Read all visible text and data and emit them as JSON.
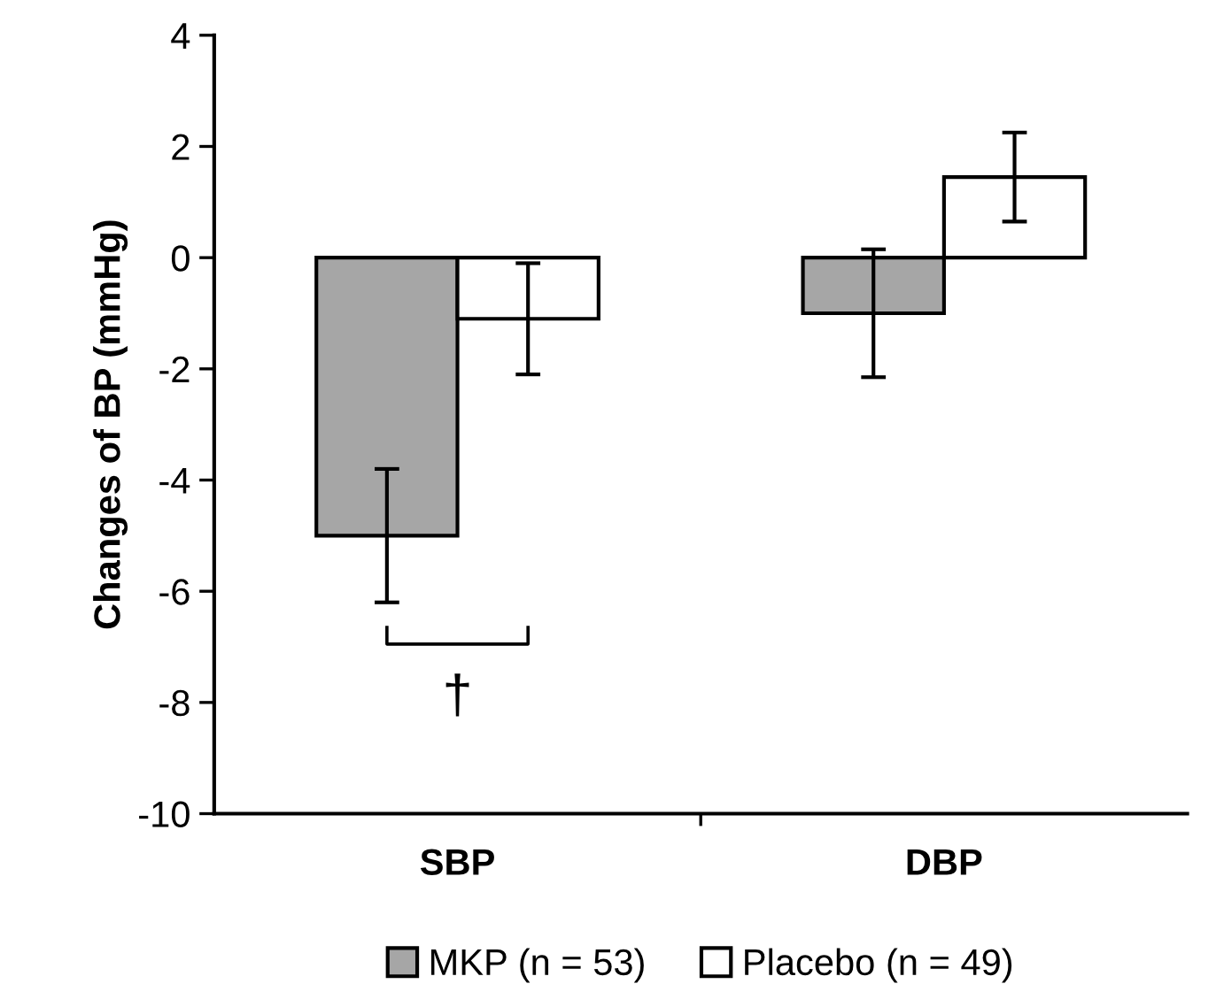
{
  "chart_data": {
    "type": "bar",
    "ylabel": "Changes of BP (mmHg)",
    "categories": [
      "SBP",
      "DBP"
    ],
    "series": [
      {
        "name": "MKP (n = 53)",
        "color": "#a6a6a6",
        "values": [
          -5.0,
          -1.0
        ],
        "errors": [
          1.2,
          1.15
        ]
      },
      {
        "name": "Placebo (n = 49)",
        "color": "#ffffff",
        "values": [
          -1.1,
          1.45
        ],
        "errors": [
          1.0,
          0.8
        ]
      }
    ],
    "ylim": [
      -10,
      4
    ],
    "yticks": [
      -10,
      -8,
      -6,
      -4,
      -2,
      0,
      2,
      4
    ],
    "annotations": [
      "†"
    ],
    "grid": false,
    "legend": "bottom"
  }
}
